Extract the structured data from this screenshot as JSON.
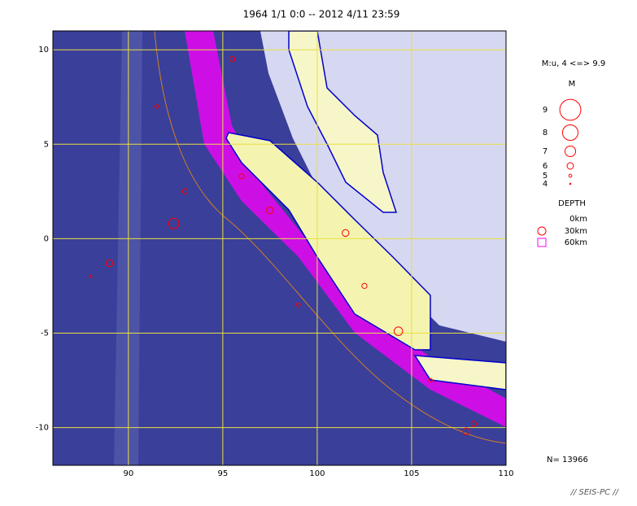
{
  "chart_data": {
    "type": "map",
    "title": "1964 1/1 0:0 -- 2012 4/11 23:59",
    "xlim": [
      86,
      110
    ],
    "ylim": [
      -12,
      11
    ],
    "xticks": [
      90,
      95,
      100,
      105,
      110
    ],
    "yticks": [
      10,
      5,
      0,
      -5,
      -10
    ],
    "grid": true,
    "grid_color": "#e8e040",
    "marker_color": "#ff0000",
    "magnitude_label": "M:u, 4 <=> 9.9",
    "magnitude_title": "M",
    "magnitudes": [
      9,
      8,
      7,
      6,
      5,
      4
    ],
    "depth_title": "DEPTH",
    "depths": [
      {
        "value": 0,
        "label": "0km"
      },
      {
        "value": 30,
        "label": "30km"
      },
      {
        "value": 60,
        "label": "60km"
      }
    ],
    "count_label": "N= 13966",
    "x": [
      92.4,
      89.0,
      104.3,
      107.9,
      108.3,
      96.0,
      97.5,
      93.0,
      101.5,
      95.5,
      99.0,
      102.5,
      106.0,
      88.0,
      91.5
    ],
    "y": [
      0.8,
      -1.3,
      -4.9,
      -10.2,
      -9.8,
      3.3,
      1.5,
      2.5,
      0.3,
      9.5,
      -3.5,
      -2.5,
      -7.5,
      -2.0,
      7.0
    ],
    "sizes": [
      7.5,
      6.5,
      7.0,
      6.5,
      6.0,
      6.0,
      6.5,
      6.0,
      6.5,
      6.0,
      5.5,
      6.0,
      5.5,
      5.0,
      5.5
    ]
  },
  "footer": "// SEIS-PC //"
}
